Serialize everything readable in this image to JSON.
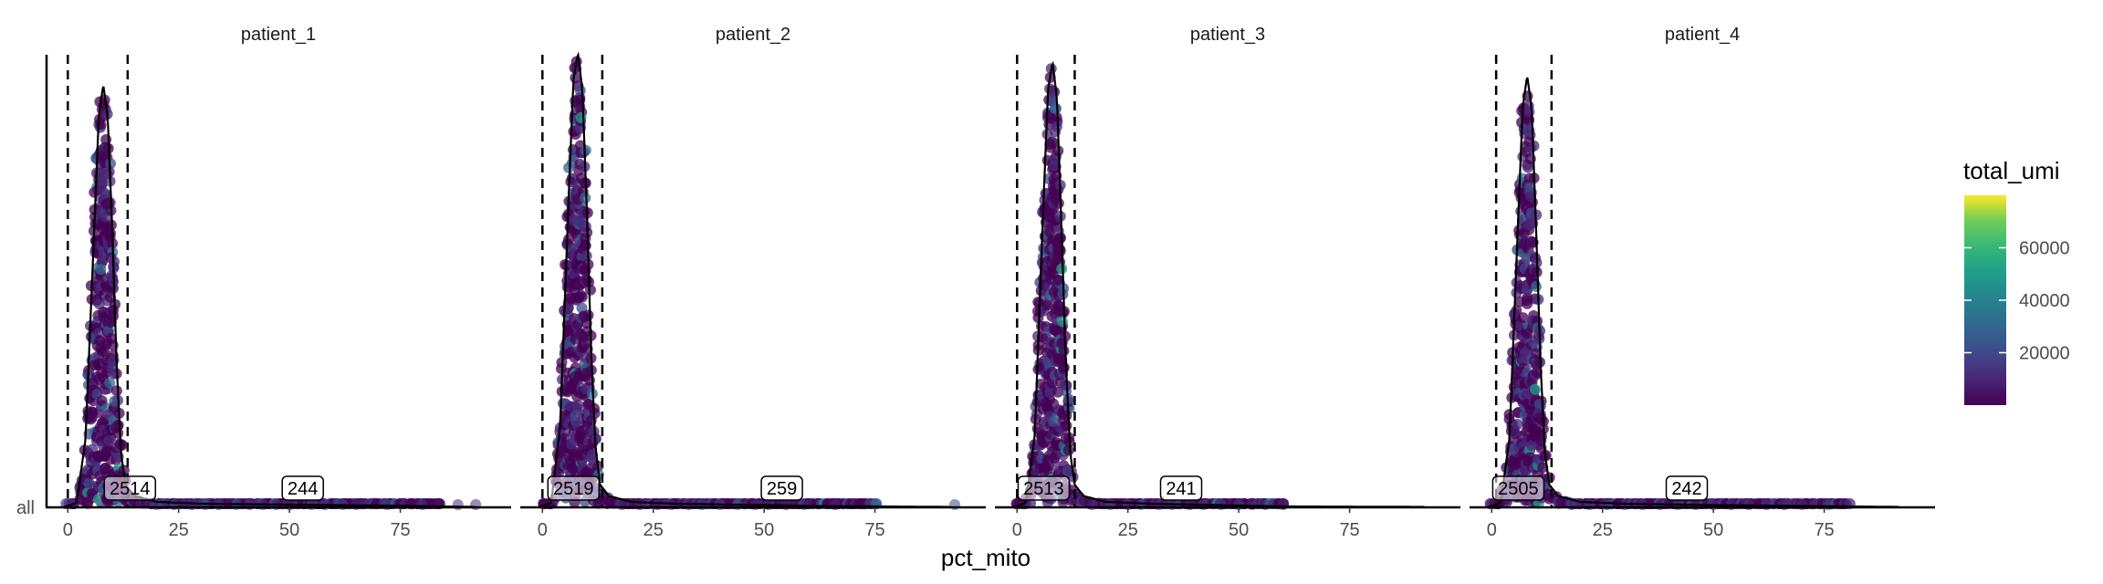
{
  "chart_data": {
    "type": "scatter",
    "subtype": "faceted ridgeline density with jittered points",
    "facets": [
      {
        "label": "patient_1",
        "cutoffs": [
          0,
          13.5
        ],
        "counts": [
          {
            "x": 14,
            "text": "2514"
          },
          {
            "x": 53,
            "text": "244"
          }
        ],
        "density": [
          [
            -1,
            0
          ],
          [
            2,
            0.01
          ],
          [
            4,
            0.15
          ],
          [
            6,
            0.62
          ],
          [
            7,
            0.86
          ],
          [
            8,
            0.93
          ],
          [
            9,
            0.86
          ],
          [
            10,
            0.62
          ],
          [
            11,
            0.32
          ],
          [
            12,
            0.12
          ],
          [
            13,
            0.05
          ],
          [
            15,
            0.025
          ],
          [
            20,
            0.012
          ],
          [
            30,
            0.008
          ],
          [
            50,
            0.006
          ],
          [
            70,
            0.004
          ],
          [
            92,
            0.001
          ]
        ],
        "outliers": [
          20,
          24,
          28,
          31,
          34,
          38,
          41,
          44,
          47,
          50,
          55,
          58,
          62,
          65,
          72,
          80,
          88,
          92
        ]
      },
      {
        "label": "patient_2",
        "cutoffs": [
          0,
          13.5
        ],
        "counts": [
          {
            "x": 7,
            "text": "2519"
          },
          {
            "x": 54,
            "text": "259"
          }
        ],
        "density": [
          [
            -1,
            0
          ],
          [
            2,
            0.01
          ],
          [
            4,
            0.18
          ],
          [
            6,
            0.7
          ],
          [
            7,
            0.94
          ],
          [
            8,
            1.0
          ],
          [
            9,
            0.92
          ],
          [
            10,
            0.66
          ],
          [
            11,
            0.34
          ],
          [
            12,
            0.13
          ],
          [
            13,
            0.05
          ],
          [
            15,
            0.025
          ],
          [
            20,
            0.012
          ],
          [
            30,
            0.008
          ],
          [
            50,
            0.005
          ],
          [
            60,
            0.003
          ],
          [
            92,
            0.001
          ]
        ],
        "outliers": [
          18,
          22,
          26,
          29,
          33,
          36,
          40,
          44,
          48,
          51,
          55,
          59,
          66,
          93
        ]
      },
      {
        "label": "patient_3",
        "cutoffs": [
          0,
          13
        ],
        "counts": [
          {
            "x": 6,
            "text": "2513"
          },
          {
            "x": 37,
            "text": "241"
          }
        ],
        "density": [
          [
            -1,
            0
          ],
          [
            2,
            0.01
          ],
          [
            4,
            0.16
          ],
          [
            6,
            0.68
          ],
          [
            7,
            0.92
          ],
          [
            8,
            0.98
          ],
          [
            9,
            0.9
          ],
          [
            10,
            0.62
          ],
          [
            11,
            0.32
          ],
          [
            12,
            0.12
          ],
          [
            13,
            0.05
          ],
          [
            15,
            0.025
          ],
          [
            20,
            0.012
          ],
          [
            30,
            0.008
          ],
          [
            45,
            0.005
          ],
          [
            60,
            0.002
          ],
          [
            92,
            0.001
          ]
        ],
        "outliers": [
          17,
          21,
          25,
          28,
          32,
          35,
          39,
          42,
          46,
          50,
          53,
          56,
          60
        ]
      },
      {
        "label": "patient_4",
        "cutoffs": [
          1,
          13.5
        ],
        "counts": [
          {
            "x": 6,
            "text": "2505"
          },
          {
            "x": 44,
            "text": "242"
          }
        ],
        "density": [
          [
            -1,
            0
          ],
          [
            2,
            0.01
          ],
          [
            4,
            0.15
          ],
          [
            6,
            0.64
          ],
          [
            7,
            0.88
          ],
          [
            8,
            0.95
          ],
          [
            9,
            0.88
          ],
          [
            10,
            0.62
          ],
          [
            11,
            0.32
          ],
          [
            12,
            0.12
          ],
          [
            13,
            0.05
          ],
          [
            15,
            0.025
          ],
          [
            20,
            0.012
          ],
          [
            30,
            0.008
          ],
          [
            50,
            0.005
          ],
          [
            70,
            0.003
          ],
          [
            92,
            0.001
          ]
        ],
        "outliers": [
          18,
          22,
          26,
          30,
          34,
          38,
          42,
          46,
          50,
          54,
          58,
          62,
          66,
          70,
          76
        ]
      }
    ],
    "xlabel": "pct_mito",
    "ylabel": "",
    "xlim": [
      -5,
      100
    ],
    "xticks": [
      0,
      25,
      50,
      75
    ],
    "y_categories": [
      "all"
    ],
    "legend": {
      "title": "total_umi",
      "position": "right",
      "colormap": "viridis",
      "range": [
        0,
        80000
      ],
      "ticks": [
        20000,
        40000,
        60000
      ]
    },
    "grid": false
  }
}
